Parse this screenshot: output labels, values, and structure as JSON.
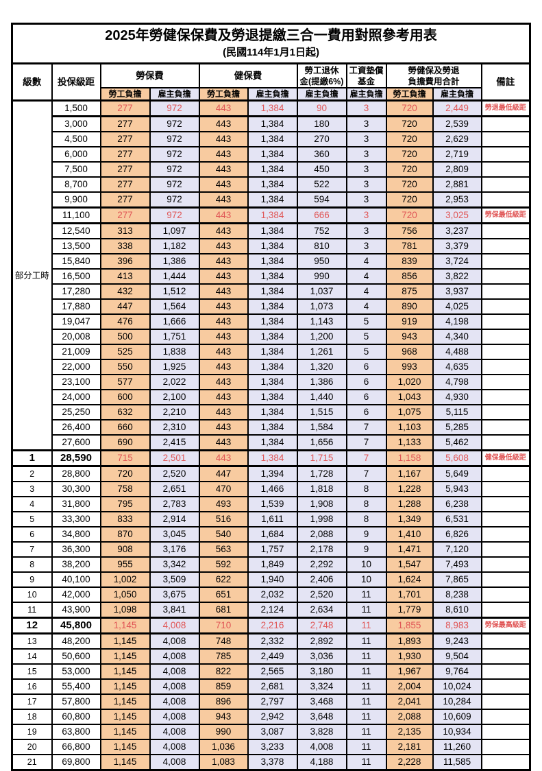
{
  "page": {
    "title": "2025年勞健保保費及勞退提繳三合一費用對照參考用表",
    "subtitle": "(民國114年1月1日起)"
  },
  "colors": {
    "employee_bg": "#F8CBA0",
    "employer_bg": "#E4E4F4",
    "highlight_text": "#E05656",
    "border": "#000000"
  },
  "header": {
    "level": "級數",
    "bracket": "投保級距",
    "labor_fee": "勞保費",
    "health_fee": "健保費",
    "pension_l1": "勞工退休",
    "pension_l2": "金(提繳6%)",
    "wage_fund_l1": "工資墊償",
    "wage_fund_l2": "基金",
    "total_l1": "勞健保及勞退",
    "total_l2": "負擔費用合計",
    "remark": "備註",
    "employee": "勞工負擔",
    "employer": "雇主負擔"
  },
  "table": {
    "section_label": "部分工時",
    "rows": [
      {
        "level": "部分工時",
        "level_span": 23,
        "bracket": "1,500",
        "values": [
          "277",
          "972",
          "443",
          "1,384",
          "90",
          "3",
          "720",
          "2,449"
        ],
        "remark": "勞退最低級距",
        "highlight": true,
        "bold": false
      },
      {
        "level": null,
        "bracket": "3,000",
        "values": [
          "277",
          "972",
          "443",
          "1,384",
          "180",
          "3",
          "720",
          "2,539"
        ],
        "remark": "",
        "highlight": false,
        "bold": false
      },
      {
        "level": null,
        "bracket": "4,500",
        "values": [
          "277",
          "972",
          "443",
          "1,384",
          "270",
          "3",
          "720",
          "2,629"
        ],
        "remark": "",
        "highlight": false,
        "bold": false
      },
      {
        "level": null,
        "bracket": "6,000",
        "values": [
          "277",
          "972",
          "443",
          "1,384",
          "360",
          "3",
          "720",
          "2,719"
        ],
        "remark": "",
        "highlight": false,
        "bold": false
      },
      {
        "level": null,
        "bracket": "7,500",
        "values": [
          "277",
          "972",
          "443",
          "1,384",
          "450",
          "3",
          "720",
          "2,809"
        ],
        "remark": "",
        "highlight": false,
        "bold": false
      },
      {
        "level": null,
        "bracket": "8,700",
        "values": [
          "277",
          "972",
          "443",
          "1,384",
          "522",
          "3",
          "720",
          "2,881"
        ],
        "remark": "",
        "highlight": false,
        "bold": false
      },
      {
        "level": null,
        "bracket": "9,900",
        "values": [
          "277",
          "972",
          "443",
          "1,384",
          "594",
          "3",
          "720",
          "2,953"
        ],
        "remark": "",
        "highlight": false,
        "bold": false
      },
      {
        "level": null,
        "bracket": "11,100",
        "values": [
          "277",
          "972",
          "443",
          "1,384",
          "666",
          "3",
          "720",
          "3,025"
        ],
        "remark": "勞保最低級距",
        "highlight": true,
        "bold": false
      },
      {
        "level": null,
        "bracket": "12,540",
        "values": [
          "313",
          "1,097",
          "443",
          "1,384",
          "752",
          "3",
          "756",
          "3,237"
        ],
        "remark": "",
        "highlight": false,
        "bold": false
      },
      {
        "level": null,
        "bracket": "13,500",
        "values": [
          "338",
          "1,182",
          "443",
          "1,384",
          "810",
          "3",
          "781",
          "3,379"
        ],
        "remark": "",
        "highlight": false,
        "bold": false
      },
      {
        "level": null,
        "bracket": "15,840",
        "values": [
          "396",
          "1,386",
          "443",
          "1,384",
          "950",
          "4",
          "839",
          "3,724"
        ],
        "remark": "",
        "highlight": false,
        "bold": false
      },
      {
        "level": null,
        "bracket": "16,500",
        "values": [
          "413",
          "1,444",
          "443",
          "1,384",
          "990",
          "4",
          "856",
          "3,822"
        ],
        "remark": "",
        "highlight": false,
        "bold": false
      },
      {
        "level": null,
        "bracket": "17,280",
        "values": [
          "432",
          "1,512",
          "443",
          "1,384",
          "1,037",
          "4",
          "875",
          "3,937"
        ],
        "remark": "",
        "highlight": false,
        "bold": false
      },
      {
        "level": null,
        "bracket": "17,880",
        "values": [
          "447",
          "1,564",
          "443",
          "1,384",
          "1,073",
          "4",
          "890",
          "4,025"
        ],
        "remark": "",
        "highlight": false,
        "bold": false
      },
      {
        "level": null,
        "bracket": "19,047",
        "values": [
          "476",
          "1,666",
          "443",
          "1,384",
          "1,143",
          "5",
          "919",
          "4,198"
        ],
        "remark": "",
        "highlight": false,
        "bold": false
      },
      {
        "level": null,
        "bracket": "20,008",
        "values": [
          "500",
          "1,751",
          "443",
          "1,384",
          "1,200",
          "5",
          "943",
          "4,340"
        ],
        "remark": "",
        "highlight": false,
        "bold": false
      },
      {
        "level": null,
        "bracket": "21,009",
        "values": [
          "525",
          "1,838",
          "443",
          "1,384",
          "1,261",
          "5",
          "968",
          "4,488"
        ],
        "remark": "",
        "highlight": false,
        "bold": false
      },
      {
        "level": null,
        "bracket": "22,000",
        "values": [
          "550",
          "1,925",
          "443",
          "1,384",
          "1,320",
          "6",
          "993",
          "4,635"
        ],
        "remark": "",
        "highlight": false,
        "bold": false
      },
      {
        "level": null,
        "bracket": "23,100",
        "values": [
          "577",
          "2,022",
          "443",
          "1,384",
          "1,386",
          "6",
          "1,020",
          "4,798"
        ],
        "remark": "",
        "highlight": false,
        "bold": false
      },
      {
        "level": null,
        "bracket": "24,000",
        "values": [
          "600",
          "2,100",
          "443",
          "1,384",
          "1,440",
          "6",
          "1,043",
          "4,930"
        ],
        "remark": "",
        "highlight": false,
        "bold": false
      },
      {
        "level": null,
        "bracket": "25,250",
        "values": [
          "632",
          "2,210",
          "443",
          "1,384",
          "1,515",
          "6",
          "1,075",
          "5,115"
        ],
        "remark": "",
        "highlight": false,
        "bold": false
      },
      {
        "level": null,
        "bracket": "26,400",
        "values": [
          "660",
          "2,310",
          "443",
          "1,384",
          "1,584",
          "7",
          "1,103",
          "5,285"
        ],
        "remark": "",
        "highlight": false,
        "bold": false
      },
      {
        "level": null,
        "bracket": "27,600",
        "values": [
          "690",
          "2,415",
          "443",
          "1,384",
          "1,656",
          "7",
          "1,133",
          "5,462"
        ],
        "remark": "",
        "highlight": false,
        "bold": false
      },
      {
        "level": "1",
        "bracket": "28,590",
        "values": [
          "715",
          "2,501",
          "443",
          "1,384",
          "1,715",
          "7",
          "1,158",
          "5,608"
        ],
        "remark": "健保最低級距",
        "highlight": true,
        "bold": true
      },
      {
        "level": "2",
        "bracket": "28,800",
        "values": [
          "720",
          "2,520",
          "447",
          "1,394",
          "1,728",
          "7",
          "1,167",
          "5,649"
        ],
        "remark": "",
        "highlight": false,
        "bold": false
      },
      {
        "level": "3",
        "bracket": "30,300",
        "values": [
          "758",
          "2,651",
          "470",
          "1,466",
          "1,818",
          "8",
          "1,228",
          "5,943"
        ],
        "remark": "",
        "highlight": false,
        "bold": false
      },
      {
        "level": "4",
        "bracket": "31,800",
        "values": [
          "795",
          "2,783",
          "493",
          "1,539",
          "1,908",
          "8",
          "1,288",
          "6,238"
        ],
        "remark": "",
        "highlight": false,
        "bold": false
      },
      {
        "level": "5",
        "bracket": "33,300",
        "values": [
          "833",
          "2,914",
          "516",
          "1,611",
          "1,998",
          "8",
          "1,349",
          "6,531"
        ],
        "remark": "",
        "highlight": false,
        "bold": false
      },
      {
        "level": "6",
        "bracket": "34,800",
        "values": [
          "870",
          "3,045",
          "540",
          "1,684",
          "2,088",
          "9",
          "1,410",
          "6,826"
        ],
        "remark": "",
        "highlight": false,
        "bold": false
      },
      {
        "level": "7",
        "bracket": "36,300",
        "values": [
          "908",
          "3,176",
          "563",
          "1,757",
          "2,178",
          "9",
          "1,471",
          "7,120"
        ],
        "remark": "",
        "highlight": false,
        "bold": false
      },
      {
        "level": "8",
        "bracket": "38,200",
        "values": [
          "955",
          "3,342",
          "592",
          "1,849",
          "2,292",
          "10",
          "1,547",
          "7,493"
        ],
        "remark": "",
        "highlight": false,
        "bold": false
      },
      {
        "level": "9",
        "bracket": "40,100",
        "values": [
          "1,002",
          "3,509",
          "622",
          "1,940",
          "2,406",
          "10",
          "1,624",
          "7,865"
        ],
        "remark": "",
        "highlight": false,
        "bold": false
      },
      {
        "level": "10",
        "bracket": "42,000",
        "values": [
          "1,050",
          "3,675",
          "651",
          "2,032",
          "2,520",
          "11",
          "1,701",
          "8,238"
        ],
        "remark": "",
        "highlight": false,
        "bold": false
      },
      {
        "level": "11",
        "bracket": "43,900",
        "values": [
          "1,098",
          "3,841",
          "681",
          "2,124",
          "2,634",
          "11",
          "1,779",
          "8,610"
        ],
        "remark": "",
        "highlight": false,
        "bold": false
      },
      {
        "level": "12",
        "bracket": "45,800",
        "values": [
          "1,145",
          "4,008",
          "710",
          "2,216",
          "2,748",
          "11",
          "1,855",
          "8,983"
        ],
        "remark": "勞保最高級距",
        "highlight": true,
        "bold": true
      },
      {
        "level": "13",
        "bracket": "48,200",
        "values": [
          "1,145",
          "4,008",
          "748",
          "2,332",
          "2,892",
          "11",
          "1,893",
          "9,243"
        ],
        "remark": "",
        "highlight": false,
        "bold": false
      },
      {
        "level": "14",
        "bracket": "50,600",
        "values": [
          "1,145",
          "4,008",
          "785",
          "2,449",
          "3,036",
          "11",
          "1,930",
          "9,504"
        ],
        "remark": "",
        "highlight": false,
        "bold": false
      },
      {
        "level": "15",
        "bracket": "53,000",
        "values": [
          "1,145",
          "4,008",
          "822",
          "2,565",
          "3,180",
          "11",
          "1,967",
          "9,764"
        ],
        "remark": "",
        "highlight": false,
        "bold": false
      },
      {
        "level": "16",
        "bracket": "55,400",
        "values": [
          "1,145",
          "4,008",
          "859",
          "2,681",
          "3,324",
          "11",
          "2,004",
          "10,024"
        ],
        "remark": "",
        "highlight": false,
        "bold": false
      },
      {
        "level": "17",
        "bracket": "57,800",
        "values": [
          "1,145",
          "4,008",
          "896",
          "2,797",
          "3,468",
          "11",
          "2,041",
          "10,284"
        ],
        "remark": "",
        "highlight": false,
        "bold": false
      },
      {
        "level": "18",
        "bracket": "60,800",
        "values": [
          "1,145",
          "4,008",
          "943",
          "2,942",
          "3,648",
          "11",
          "2,088",
          "10,609"
        ],
        "remark": "",
        "highlight": false,
        "bold": false
      },
      {
        "level": "19",
        "bracket": "63,800",
        "values": [
          "1,145",
          "4,008",
          "990",
          "3,087",
          "3,828",
          "11",
          "2,135",
          "10,934"
        ],
        "remark": "",
        "highlight": false,
        "bold": false
      },
      {
        "level": "20",
        "bracket": "66,800",
        "values": [
          "1,145",
          "4,008",
          "1,036",
          "3,233",
          "4,008",
          "11",
          "2,181",
          "11,260"
        ],
        "remark": "",
        "highlight": false,
        "bold": false
      },
      {
        "level": "21",
        "bracket": "69,800",
        "values": [
          "1,145",
          "4,008",
          "1,083",
          "3,378",
          "4,188",
          "11",
          "2,228",
          "11,585"
        ],
        "remark": "",
        "highlight": false,
        "bold": false
      }
    ]
  }
}
